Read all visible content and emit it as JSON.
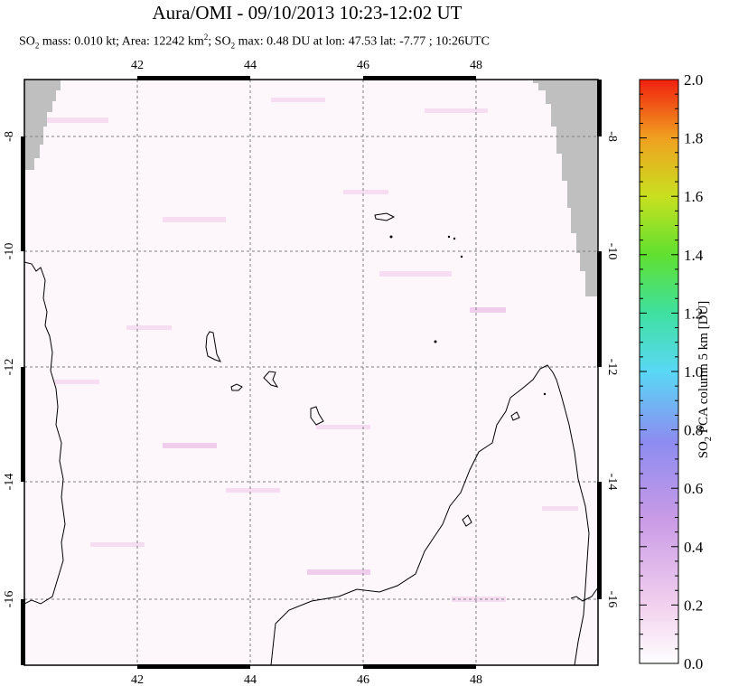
{
  "title": "Aura/OMI - 09/10/2013 10:23-12:02 UT",
  "subtitle": {
    "so2_prefix": "SO",
    "so2_sub": "2",
    "mass_text": " mass: 0.010 kt; Area: 12242 km",
    "area_sup": "2",
    "max_prefix": "; SO",
    "max_sub": "2",
    "max_text": " max: 0.48 DU at lon: 47.53 lat: -7.77 ; 10:26UTC"
  },
  "map": {
    "lon_range": [
      40,
      50
    ],
    "lat_range": [
      -17.2,
      -7
    ],
    "lon_ticks": [
      "42",
      "44",
      "46",
      "48"
    ],
    "lat_ticks": [
      "-8",
      "-10",
      "-12",
      "-14",
      "-16"
    ],
    "colors": {
      "background": "#fdf6fb",
      "no_data": "#bfbfbf",
      "gridline": "#808080",
      "coast": "#000000"
    }
  },
  "colorbar": {
    "label_prefix": "SO",
    "label_sub": "2",
    "label_text": " PCA column 5 km [DU]",
    "ticks": [
      "0.0",
      "0.2",
      "0.4",
      "0.6",
      "0.8",
      "1.0",
      "1.2",
      "1.4",
      "1.6",
      "1.8",
      "2.0"
    ],
    "min": 0.0,
    "max": 2.0
  }
}
